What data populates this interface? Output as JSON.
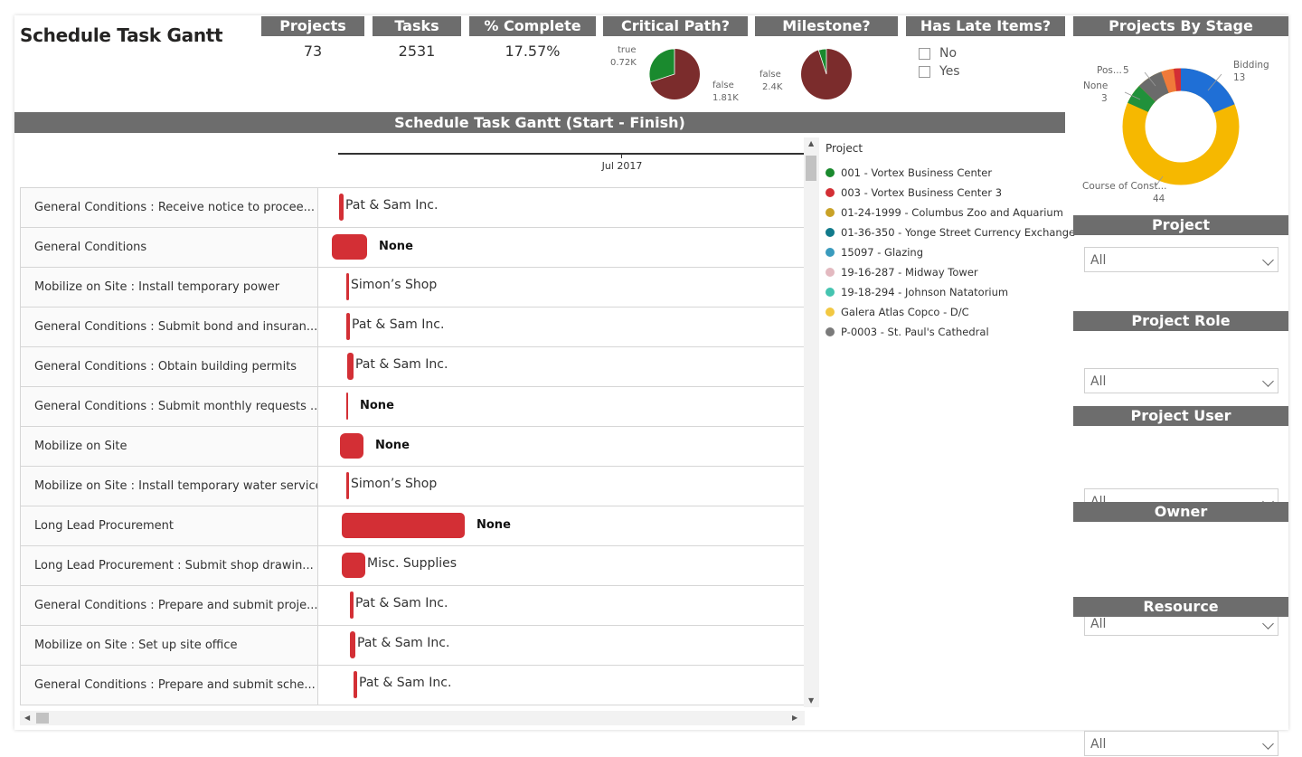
{
  "page_title": "Schedule Task Gantt",
  "kpis": [
    {
      "label": "Projects",
      "value": "73"
    },
    {
      "label": "Tasks",
      "value": "2531"
    },
    {
      "label": "% Complete",
      "value": "17.57%"
    }
  ],
  "critical_path": {
    "title": "Critical Path?",
    "true_label": "true",
    "true_value": "0.72K",
    "false_label": "false",
    "false_value": "1.81K",
    "colors": {
      "true": "#1a8a2e",
      "false": "#7b2c2c"
    }
  },
  "milestone": {
    "title": "Milestone?",
    "false_label": "false",
    "false_value": "2.4K",
    "colors": {
      "true": "#1a8a2e",
      "false": "#7b2c2c"
    }
  },
  "has_late": {
    "title": "Has Late Items?",
    "options": [
      "No",
      "Yes"
    ]
  },
  "stage_chart": {
    "title": "Projects By Stage",
    "labels": {
      "bidding": "Bidding",
      "bidding_val": "13",
      "none": "None",
      "none_val": "3",
      "pos": "Pos...",
      "pos_val": "5",
      "course": "Course of Const...",
      "course_val": "44"
    }
  },
  "gantt": {
    "title": "Schedule Task Gantt (Start - Finish)",
    "axis_label": "Jul 2017",
    "rows": [
      {
        "task": "General Conditions : Receive notice to procee...",
        "label": "Pat & Sam Inc."
      },
      {
        "task": "General Conditions",
        "label": "None"
      },
      {
        "task": "Mobilize on Site : Install temporary power",
        "label": "Simon’s Shop"
      },
      {
        "task": "General Conditions : Submit bond and insuran...",
        "label": "Pat & Sam Inc."
      },
      {
        "task": "General Conditions : Obtain building permits",
        "label": "Pat & Sam Inc."
      },
      {
        "task": "General Conditions : Submit monthly requests ...",
        "label": "None"
      },
      {
        "task": "Mobilize on Site",
        "label": "None"
      },
      {
        "task": "Mobilize on Site : Install temporary water service",
        "label": "Simon’s Shop"
      },
      {
        "task": "Long Lead Procurement",
        "label": "None"
      },
      {
        "task": "Long Lead Procurement : Submit shop drawin...",
        "label": "Misc. Supplies"
      },
      {
        "task": "General Conditions : Prepare and submit proje...",
        "label": "Pat & Sam Inc."
      },
      {
        "task": "Mobilize on Site : Set up site office",
        "label": "Pat & Sam Inc."
      },
      {
        "task": "General Conditions : Prepare and submit sche...",
        "label": "Pat & Sam Inc."
      }
    ]
  },
  "legend": {
    "title": "Project",
    "items": [
      {
        "label": "001 - Vortex Business Center",
        "color": "#1a8a2e"
      },
      {
        "label": "003 - Vortex Business Center 3",
        "color": "#d32f35"
      },
      {
        "label": "01-24-1999 - Columbus Zoo and Aquarium",
        "color": "#c9a227"
      },
      {
        "label": "01-36-350 - Yonge Street Currency Exchange",
        "color": "#117a8b"
      },
      {
        "label": "15097 - Glazing",
        "color": "#3a9bbd"
      },
      {
        "label": "19-16-287 - Midway Tower",
        "color": "#e3b9c0"
      },
      {
        "label": "19-18-294 - Johnson Natatorium",
        "color": "#45c4b0"
      },
      {
        "label": "Galera Atlas Copco - D/C",
        "color": "#f2c842"
      },
      {
        "label": "P-0003 - St. Paul's Cathedral",
        "color": "#7a7a7a"
      }
    ]
  },
  "slicers": [
    {
      "title": "Project",
      "value": "All"
    },
    {
      "title": "Project Role",
      "value": "All"
    },
    {
      "title": "Project User",
      "value": "All"
    },
    {
      "title": "Owner",
      "value": "All"
    },
    {
      "title": "Resource",
      "value": "All"
    }
  ]
}
